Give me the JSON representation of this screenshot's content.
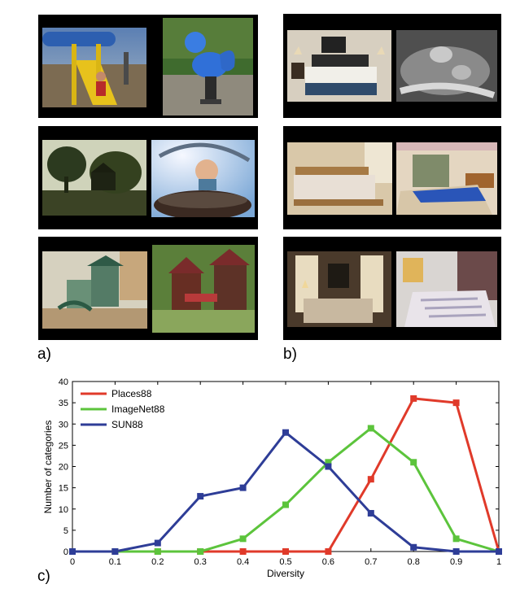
{
  "labels": {
    "a": "a)",
    "b": "b)",
    "c": "c)"
  },
  "panels_a": [
    {
      "name": "playground-pair-1",
      "photos": [
        "playground-slide-child",
        "spring-rocker-seahorse"
      ]
    },
    {
      "name": "playground-pair-2",
      "photos": [
        "playground-trees-silhouette",
        "child-on-merry-go-round"
      ]
    },
    {
      "name": "playground-pair-3",
      "photos": [
        "playground-structure-green",
        "playground-structure-red"
      ]
    }
  ],
  "panels_b": [
    {
      "name": "bedroom-pair-1",
      "photos": [
        "bedroom-bed-lamps",
        "child-sleeping-bw"
      ]
    },
    {
      "name": "bedroom-pair-2",
      "photos": [
        "bedroom-wooden-bed",
        "bedroom-blue-blanket"
      ]
    },
    {
      "name": "bedroom-pair-3",
      "photos": [
        "bedroom-curtains-dark",
        "bedroom-bright-window"
      ]
    }
  ],
  "chart_data": {
    "type": "line",
    "xlabel": "Diversity",
    "ylabel": "Number of categories",
    "xlim": [
      0,
      1
    ],
    "ylim": [
      0,
      40
    ],
    "x_ticks": [
      "0",
      "0.1",
      "0.2",
      "0.3",
      "0.4",
      "0.5",
      "0.6",
      "0.7",
      "0.8",
      "0.9",
      "1"
    ],
    "y_ticks": [
      "0",
      "5",
      "10",
      "15",
      "20",
      "25",
      "30",
      "35",
      "40"
    ],
    "x": [
      0,
      0.1,
      0.2,
      0.3,
      0.4,
      0.5,
      0.6,
      0.7,
      0.8,
      0.9,
      1.0
    ],
    "legend_position": "top-left",
    "series": [
      {
        "name": "Places88",
        "color": "#e03a2a",
        "values": [
          0,
          0,
          0,
          0,
          0,
          0,
          0,
          17,
          36,
          35,
          0
        ]
      },
      {
        "name": "ImageNet88",
        "color": "#5cc43c",
        "values": [
          0,
          0,
          0,
          0,
          3,
          11,
          21,
          29,
          21,
          3,
          0
        ]
      },
      {
        "name": "SUN88",
        "color": "#2e3d97",
        "values": [
          0,
          0,
          2,
          13,
          15,
          28,
          20,
          9,
          1,
          0,
          0
        ]
      }
    ]
  }
}
